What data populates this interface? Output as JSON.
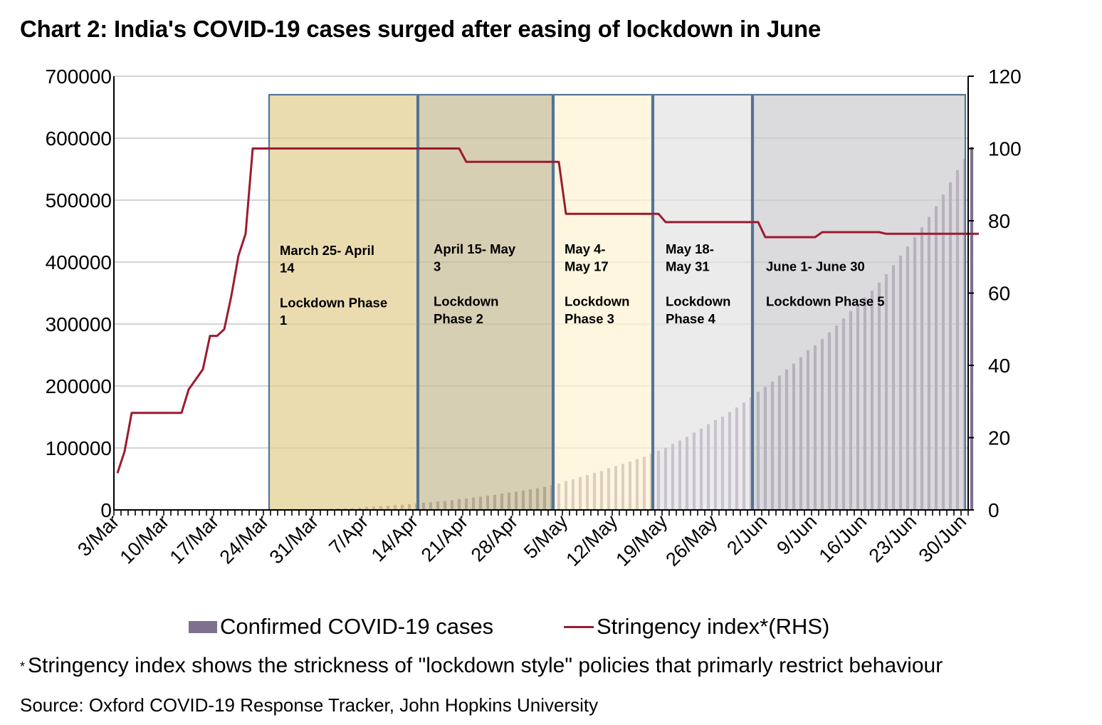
{
  "chart_data": {
    "type": "bar+line",
    "title": "Chart 2: India's COVID-19 cases surged after easing of lockdown in June",
    "x_start_date": "2020-03-03",
    "x_end_date": "2020-06-30",
    "x_tick_labels": [
      "3/Mar",
      "10/Mar",
      "17/Mar",
      "24/Mar",
      "31/Mar",
      "7/Apr",
      "14/Apr",
      "21/Apr",
      "28/Apr",
      "5/May",
      "12/May",
      "19/May",
      "26/May",
      "2/Jun",
      "9/Jun",
      "16/Jun",
      "23/Jun",
      "30/Jun"
    ],
    "y_left": {
      "label": "",
      "ylim": [
        0,
        700000
      ],
      "ticks": [
        0,
        100000,
        200000,
        300000,
        400000,
        500000,
        600000,
        700000
      ],
      "tick_labels": [
        "0",
        "100000",
        "200000",
        "300000",
        "400000",
        "500000",
        "600000",
        "700000"
      ]
    },
    "y_right": {
      "label": "RHS",
      "ylim": [
        0,
        120
      ],
      "ticks": [
        0,
        20,
        40,
        60,
        80,
        100,
        120
      ],
      "tick_labels": [
        "0",
        "20",
        "40",
        "60",
        "80",
        "100",
        "120"
      ]
    },
    "grid": true,
    "legend_position": "bottom",
    "series": [
      {
        "name": "Confirmed COVID-19 cases",
        "type": "bar",
        "axis": "left",
        "color": "#80708f",
        "values": [
          5,
          6,
          28,
          30,
          31,
          34,
          39,
          43,
          56,
          62,
          73,
          82,
          102,
          113,
          119,
          142,
          156,
          194,
          244,
          330,
          396,
          499,
          536,
          657,
          727,
          887,
          987,
          1024,
          1251,
          1397,
          1998,
          2543,
          2567,
          3082,
          3588,
          4778,
          5311,
          5916,
          6725,
          7598,
          8446,
          9205,
          10453,
          11487,
          12322,
          13430,
          14352,
          15722,
          17615,
          18539,
          20080,
          21370,
          23077,
          24530,
          26283,
          27890,
          29451,
          31324,
          33062,
          34863,
          37257,
          39699,
          42505,
          46437,
          49400,
          52987,
          56351,
          59695,
          62808,
          67161,
          70768,
          74292,
          78055,
          81997,
          85784,
          90648,
          95698,
          100328,
          106475,
          112028,
          118226,
          124794,
          131423,
          138536,
          144950,
          150793,
          158086,
          165386,
          173491,
          181827,
          190609,
          198370,
          207191,
          216824,
          226713,
          236184,
          246622,
          257486,
          265928,
          276146,
          286579,
          297535,
          308993,
          320922,
          332424,
          343091,
          354065,
          366946,
          380532,
          395048,
          410461,
          425282,
          440215,
          456183,
          473105,
          490401,
          508953,
          528859,
          548318,
          566840,
          585493
        ],
        "phase_fill_tinting": "bars appear tinted through translucent phase boxes"
      },
      {
        "name": "Stringency index*(RHS)",
        "type": "line",
        "axis": "right",
        "color": "#9b1b30",
        "values": [
          10.19,
          16.2,
          26.85,
          26.85,
          26.85,
          26.85,
          26.85,
          26.85,
          26.85,
          26.85,
          33.33,
          36.11,
          38.89,
          48.15,
          48.15,
          50.0,
          59.26,
          70.37,
          76.39,
          100,
          100,
          100,
          100,
          100,
          100,
          100,
          100,
          100,
          100,
          100,
          100,
          100,
          100,
          100,
          100,
          100,
          100,
          100,
          100,
          100,
          100,
          100,
          100,
          100,
          100,
          100,
          100,
          100,
          100,
          96.3,
          96.3,
          96.3,
          96.3,
          96.3,
          96.3,
          96.3,
          96.3,
          96.3,
          96.3,
          96.3,
          96.3,
          96.3,
          96.3,
          81.94,
          81.94,
          81.94,
          81.94,
          81.94,
          81.94,
          81.94,
          81.94,
          81.94,
          81.94,
          81.94,
          81.94,
          81.94,
          81.94,
          79.63,
          79.63,
          79.63,
          79.63,
          79.63,
          79.63,
          79.63,
          79.63,
          79.63,
          79.63,
          79.63,
          79.63,
          79.63,
          79.63,
          75.46,
          75.46,
          75.46,
          75.46,
          75.46,
          75.46,
          75.46,
          75.46,
          76.85,
          76.85,
          76.85,
          76.85,
          76.85,
          76.85,
          76.85,
          76.85,
          76.85,
          76.39,
          76.39,
          76.39,
          76.39,
          76.39,
          76.39,
          76.39,
          76.39,
          76.39,
          76.39,
          76.39,
          76.39,
          76.39,
          76.39
        ]
      }
    ],
    "annotations": [
      {
        "name": "phase-1",
        "start": "2020-03-25",
        "end": "2020-04-14",
        "date_label": "March 25- April 14",
        "phase_label": "Lockdown Phase 1",
        "fill": "#e3cf92"
      },
      {
        "name": "phase-2",
        "start": "2020-04-15",
        "end": "2020-05-03",
        "date_label": "April 15- May 3",
        "phase_label": "Lockdown Phase 2",
        "fill": "#c8bd96"
      },
      {
        "name": "phase-3",
        "start": "2020-05-04",
        "end": "2020-05-17",
        "date_label": "May 4- May 17",
        "phase_label": "Lockdown Phase 3",
        "fill": "#fff2d2"
      },
      {
        "name": "phase-4",
        "start": "2020-05-18",
        "end": "2020-05-31",
        "date_label": "May 18- May 31",
        "phase_label": "Lockdown Phase 4",
        "fill": "#e4e3e5"
      },
      {
        "name": "phase-5",
        "start": "2020-06-01",
        "end": "2020-06-30",
        "date_label": "June 1- June 30",
        "phase_label": "Lockdown Phase 5",
        "fill": "#cdcccf"
      }
    ],
    "phase_box_border": "#547496"
  },
  "legend": {
    "cases_label": "Confirmed COVID-19 cases",
    "stringency_label": "Stringency index*(RHS)"
  },
  "footnote": {
    "star": "*",
    "text": "Stringency index shows the strickness of \"lockdown style\" policies that primarly restrict behaviour"
  },
  "source": "Source: Oxford COVID-19 Response Tracker, John Hopkins University"
}
